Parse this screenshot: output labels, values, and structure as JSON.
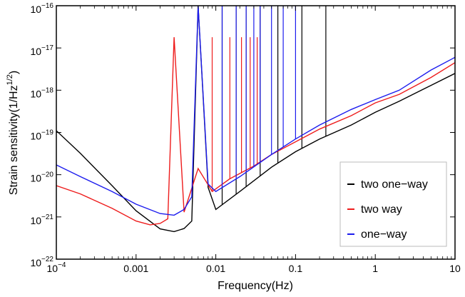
{
  "chart_data": {
    "type": "line",
    "title": "",
    "xlabel": "Frequency(Hz)",
    "ylabel_main": "Strain sensitivity(1/Hz",
    "ylabel_exp": "1/2",
    "ylabel_end": ")",
    "x_scale": "log",
    "y_scale": "log",
    "xlim": [
      0.0001,
      10
    ],
    "ylim": [
      1e-22,
      1e-16
    ],
    "grid": false,
    "legend_position": "lower-right",
    "x_ticks": [
      {
        "value": 0.0001,
        "base": "10",
        "exp": "−4"
      },
      {
        "value": 0.001,
        "label": "0.001"
      },
      {
        "value": 0.01,
        "label": "0.01"
      },
      {
        "value": 0.1,
        "label": "0.1"
      },
      {
        "value": 1,
        "label": "1"
      },
      {
        "value": 10,
        "label": "10"
      }
    ],
    "y_ticks": [
      {
        "value": 1e-22,
        "base": "10",
        "exp": "−22"
      },
      {
        "value": 1e-21,
        "base": "10",
        "exp": "−21"
      },
      {
        "value": 1e-20,
        "base": "10",
        "exp": "−20"
      },
      {
        "value": 1e-19,
        "base": "10",
        "exp": "−19"
      },
      {
        "value": 1e-18,
        "base": "10",
        "exp": "−18"
      },
      {
        "value": 1e-17,
        "base": "10",
        "exp": "−17"
      },
      {
        "value": 1e-16,
        "base": "10",
        "exp": "−16"
      }
    ],
    "series": [
      {
        "name": "two one−way",
        "color": "#000000",
        "x": [
          0.0001,
          0.0002,
          0.0005,
          0.001,
          0.002,
          0.003,
          0.004,
          0.005,
          0.006,
          0.008,
          0.01,
          0.02,
          0.05,
          0.1,
          0.2,
          0.5,
          1,
          2,
          5,
          10
        ],
        "y": [
          1.1e-19,
          3.2e-20,
          5.5e-21,
          1.4e-21,
          5.2e-22,
          4.5e-22,
          5.3e-22,
          8e-22,
          1e-16,
          5e-21,
          1.5e-21,
          4e-21,
          1.5e-20,
          3.5e-20,
          7e-20,
          1.5e-19,
          3e-19,
          5.5e-19,
          1.3e-18,
          2.5e-18
        ],
        "resonance_peaks": [
          0.006,
          0.012,
          0.018,
          0.024,
          0.036,
          0.06,
          0.12,
          0.24
        ],
        "peak_value": 1e-16
      },
      {
        "name": "two way",
        "color": "#ee1c1c",
        "x": [
          0.0001,
          0.0002,
          0.0005,
          0.001,
          0.0015,
          0.002,
          0.0025,
          0.003,
          0.004,
          0.006,
          0.009,
          0.015,
          0.03,
          0.05,
          0.1,
          0.2,
          0.5,
          1,
          2,
          5,
          10
        ],
        "y": [
          5.5e-21,
          3.5e-21,
          1.6e-21,
          8e-22,
          6.5e-22,
          7e-22,
          9e-22,
          1.8e-17,
          1.3e-21,
          1.4e-20,
          4e-21,
          8e-21,
          1.6e-20,
          3e-20,
          6e-20,
          1.2e-19,
          2.5e-19,
          5e-19,
          8e-19,
          2e-18,
          4.5e-18
        ],
        "resonance_peaks": [
          0.003,
          0.009,
          0.015,
          0.021,
          0.027,
          0.033
        ],
        "peak_value": 1.8e-17
      },
      {
        "name": "one−way",
        "color": "#1c1cee",
        "x": [
          0.0001,
          0.0002,
          0.0005,
          0.001,
          0.002,
          0.003,
          0.004,
          0.005,
          0.006,
          0.008,
          0.01,
          0.02,
          0.05,
          0.1,
          0.2,
          0.5,
          1,
          2,
          5,
          10
        ],
        "y": [
          1.7e-20,
          9e-21,
          4e-21,
          2e-21,
          1.2e-21,
          1.1e-21,
          1.5e-21,
          3e-21,
          1e-16,
          6e-21,
          4e-21,
          9e-21,
          3e-20,
          7e-20,
          1.5e-19,
          3.5e-19,
          6e-19,
          1e-18,
          3e-18,
          6e-18
        ],
        "resonance_peaks": [
          0.006,
          0.012,
          0.018,
          0.024,
          0.03,
          0.036,
          0.05,
          0.07,
          0.1
        ],
        "peak_value": 1e-16
      }
    ]
  }
}
